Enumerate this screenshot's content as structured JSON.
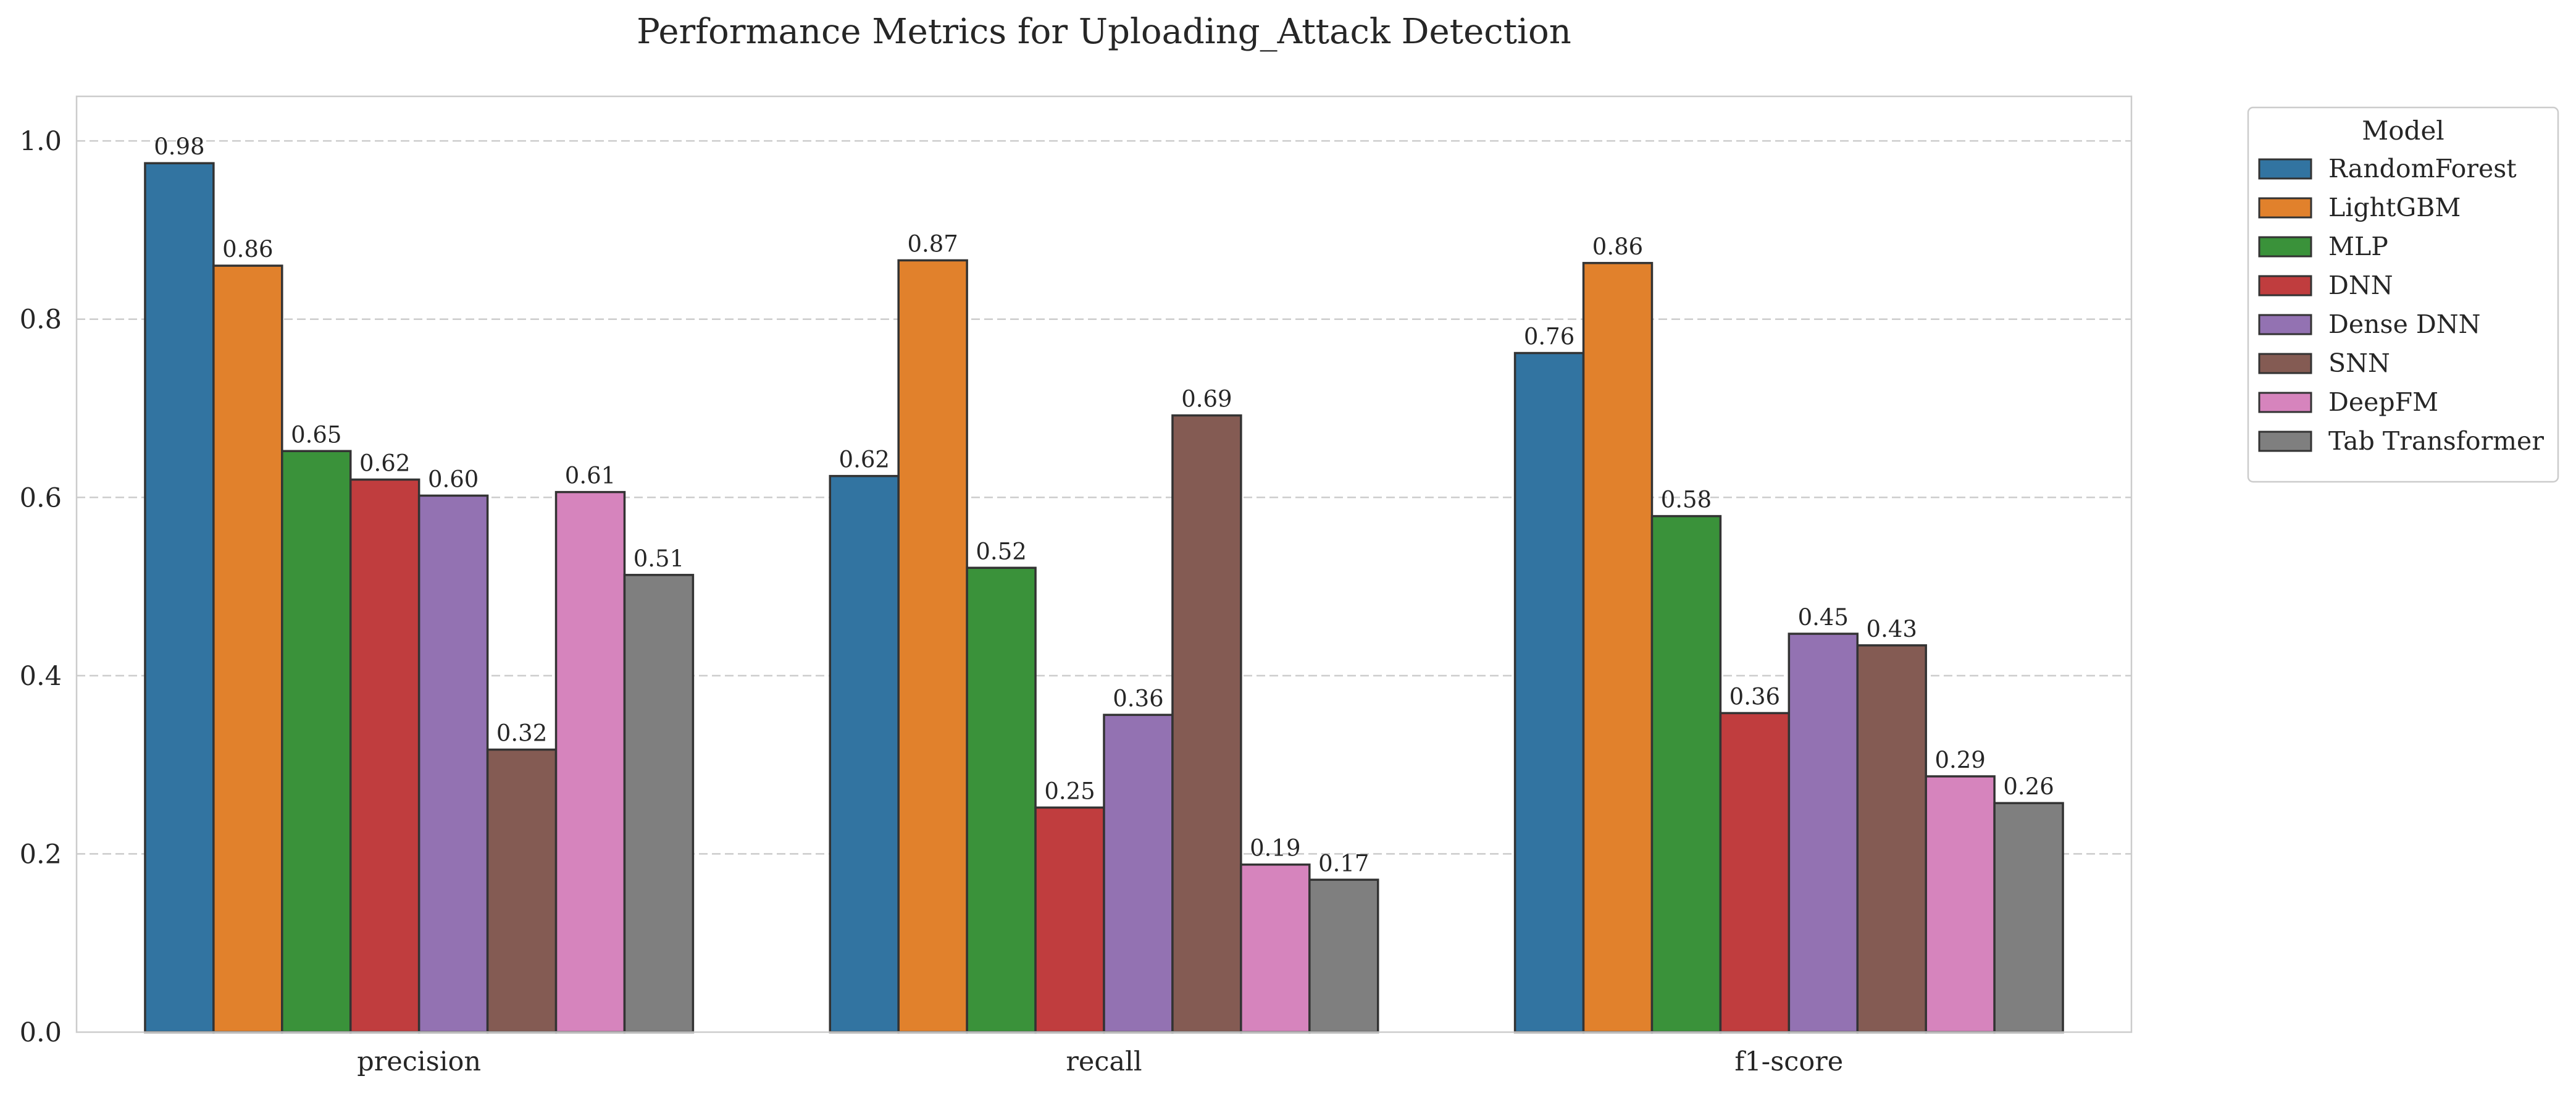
{
  "chart_data": {
    "type": "bar",
    "title": "Performance Metrics for Uploading_Attack Detection",
    "xlabel": "",
    "ylabel": "",
    "ylim": [
      0,
      1.05
    ],
    "yticks": [
      0.0,
      0.2,
      0.4,
      0.6,
      0.8,
      1.0
    ],
    "ytick_labels": [
      "0.0",
      "0.2",
      "0.4",
      "0.6",
      "0.8",
      "1.0"
    ],
    "grid": "horizontal dashed",
    "legend": {
      "title": "Model",
      "placement": "outside upper right"
    },
    "categories": [
      "precision",
      "recall",
      "f1-score"
    ],
    "series": [
      {
        "name": "RandomForest",
        "color": "#3274a1",
        "values": [
          0.975,
          0.624,
          0.762
        ],
        "labels": [
          "0.98",
          "0.62",
          "0.76"
        ]
      },
      {
        "name": "LightGBM",
        "color": "#e1812c",
        "values": [
          0.86,
          0.866,
          0.863
        ],
        "labels": [
          "0.86",
          "0.87",
          "0.86"
        ]
      },
      {
        "name": "MLP",
        "color": "#3a923a",
        "values": [
          0.652,
          0.521,
          0.579
        ],
        "labels": [
          "0.65",
          "0.52",
          "0.58"
        ]
      },
      {
        "name": "DNN",
        "color": "#c03d3e",
        "values": [
          0.62,
          0.252,
          0.358
        ],
        "labels": [
          "0.62",
          "0.25",
          "0.36"
        ]
      },
      {
        "name": "Dense DNN",
        "color": "#9372b2",
        "values": [
          0.602,
          0.356,
          0.447
        ],
        "labels": [
          "0.60",
          "0.36",
          "0.45"
        ]
      },
      {
        "name": "SNN",
        "color": "#845b53",
        "values": [
          0.317,
          0.692,
          0.434
        ],
        "labels": [
          "0.32",
          "0.69",
          "0.43"
        ]
      },
      {
        "name": "DeepFM",
        "color": "#d684bd",
        "values": [
          0.606,
          0.188,
          0.287
        ],
        "labels": [
          "0.61",
          "0.19",
          "0.29"
        ]
      },
      {
        "name": "Tab Transformer",
        "color": "#7f7f7f",
        "values": [
          0.513,
          0.171,
          0.257
        ],
        "labels": [
          "0.51",
          "0.17",
          "0.26"
        ]
      }
    ]
  }
}
